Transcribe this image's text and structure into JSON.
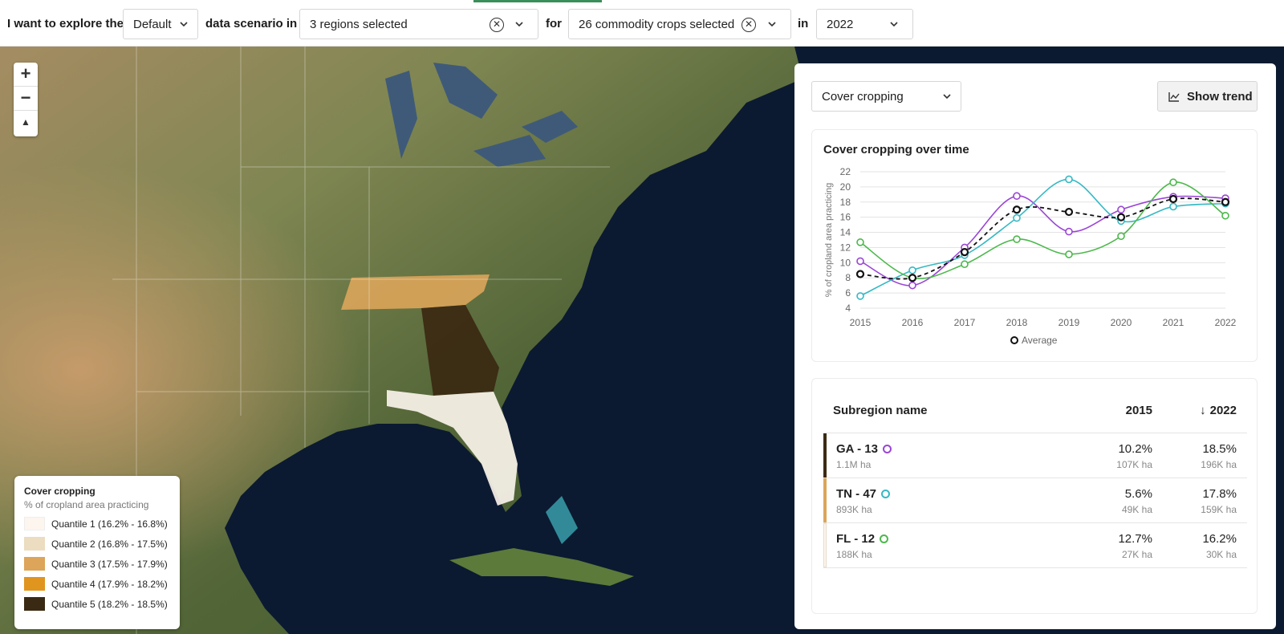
{
  "filters": {
    "prefix": "I want to explore the",
    "scenario": "Default",
    "scenario_suffix": "data scenario in",
    "regions": "3 regions selected",
    "for_label": "for",
    "crops": "26 commodity crops selected",
    "in_label": "in",
    "year": "2022"
  },
  "map_controls": {
    "zoom_in": "+",
    "zoom_out": "−",
    "compass": "▲"
  },
  "legend": {
    "title": "Cover cropping",
    "subtitle": "% of cropland area practicing",
    "items": [
      {
        "label": "Quantile 1 (16.2% - 16.8%)",
        "color": "#fdf6ee"
      },
      {
        "label": "Quantile 2 (16.8% - 17.5%)",
        "color": "#ecdcc0"
      },
      {
        "label": "Quantile 3 (17.5% - 17.9%)",
        "color": "#dca55a"
      },
      {
        "label": "Quantile 4 (17.9% - 18.2%)",
        "color": "#e0951f"
      },
      {
        "label": "Quantile 5 (18.2% - 18.5%)",
        "color": "#3b2a13"
      }
    ]
  },
  "panel": {
    "metric": "Cover cropping",
    "show_trend": "Show trend"
  },
  "chart_data": {
    "type": "line",
    "title": "Cover cropping over time",
    "xlabel": "",
    "ylabel": "% of cropland area practicing",
    "x": [
      2015,
      2016,
      2017,
      2018,
      2019,
      2020,
      2021,
      2022
    ],
    "ylim": [
      4,
      22
    ],
    "yticks": [
      4,
      6,
      8,
      10,
      12,
      14,
      16,
      18,
      20,
      22
    ],
    "grid": true,
    "legend_position": "bottom",
    "series": [
      {
        "name": "GA - 13",
        "color": "#9b45d6",
        "values": [
          10.2,
          7.0,
          12.0,
          18.8,
          14.1,
          17.0,
          18.7,
          18.5
        ],
        "dashed": false
      },
      {
        "name": "TN - 47",
        "color": "#36b9c4",
        "values": [
          5.6,
          9.0,
          11.0,
          15.9,
          21.0,
          15.5,
          17.4,
          17.8
        ],
        "dashed": false
      },
      {
        "name": "FL - 12",
        "color": "#4cb84c",
        "values": [
          12.7,
          8.0,
          9.8,
          13.1,
          11.1,
          13.5,
          20.6,
          16.2
        ],
        "dashed": false
      },
      {
        "name": "Average",
        "color": "#111111",
        "values": [
          8.5,
          8.0,
          11.4,
          17.0,
          16.7,
          16.0,
          18.4,
          18.0
        ],
        "dashed": true
      }
    ]
  },
  "table": {
    "headers": {
      "name": "Subregion name",
      "y1": "2015",
      "y2": "2022"
    },
    "sort_icon": "↓",
    "rows": [
      {
        "name": "GA - 13",
        "area": "1.1M ha",
        "v2015": "10.2%",
        "s2015": "107K ha",
        "v2022": "18.5%",
        "s2022": "196K ha",
        "bar": "#3b2a13",
        "dot": "#9b45d6"
      },
      {
        "name": "TN - 47",
        "area": "893K ha",
        "v2015": "5.6%",
        "s2015": "49K ha",
        "v2022": "17.8%",
        "s2022": "159K ha",
        "bar": "#dca55a",
        "dot": "#36b9c4"
      },
      {
        "name": "FL - 12",
        "area": "188K ha",
        "v2015": "12.7%",
        "s2015": "27K ha",
        "v2022": "16.2%",
        "s2022": "30K ha",
        "bar": "#fdf6ee",
        "dot": "#4cb84c"
      }
    ]
  }
}
